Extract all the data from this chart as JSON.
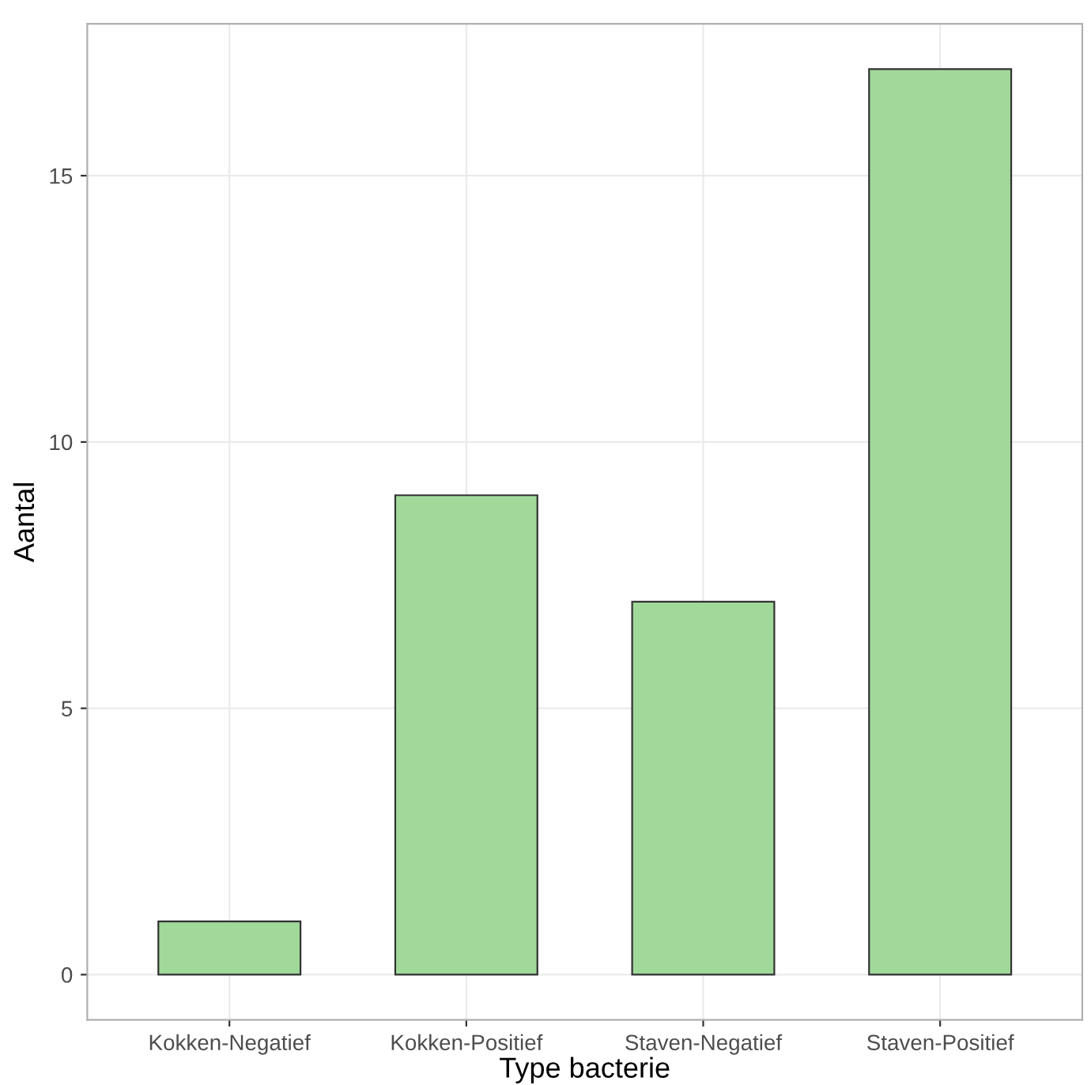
{
  "chart_data": {
    "type": "bar",
    "xlabel": "Type bacterie",
    "ylabel": "Aantal",
    "categories": [
      "Kokken-Negatief",
      "Kokken-Positief",
      "Staven-Negatief",
      "Staven-Positief"
    ],
    "values": [
      1,
      9,
      7,
      17
    ],
    "color": "#a1d99b",
    "ylim": [
      -0.85,
      17.85
    ],
    "yticks": [
      0,
      5,
      10,
      15
    ],
    "grid": true
  }
}
